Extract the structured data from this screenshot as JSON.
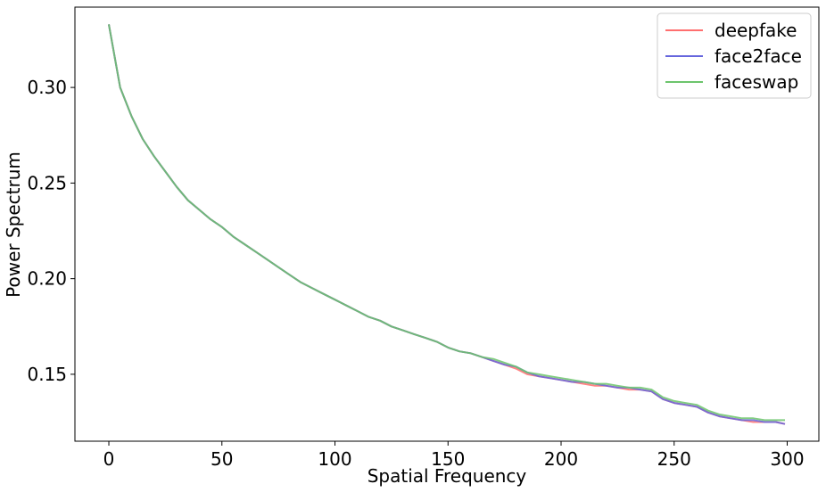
{
  "chart_data": {
    "type": "line",
    "title": "",
    "xlabel": "Spatial Frequency",
    "ylabel": "Power Spectrum",
    "xlim": [
      -15,
      314
    ],
    "ylim": [
      0.115,
      0.342
    ],
    "xticks": [
      0,
      50,
      100,
      150,
      200,
      250,
      300
    ],
    "xtick_labels": [
      "0",
      "50",
      "100",
      "150",
      "200",
      "250",
      "300"
    ],
    "yticks": [
      0.15,
      0.2,
      0.25,
      0.3
    ],
    "ytick_labels": [
      "0.15",
      "0.20",
      "0.25",
      "0.30"
    ],
    "grid": false,
    "legend_position": "top-right",
    "x": [
      0,
      5,
      10,
      15,
      20,
      25,
      30,
      35,
      40,
      45,
      50,
      55,
      60,
      65,
      70,
      75,
      80,
      85,
      90,
      95,
      100,
      105,
      110,
      115,
      120,
      125,
      130,
      135,
      140,
      145,
      150,
      155,
      160,
      165,
      170,
      175,
      180,
      185,
      190,
      195,
      200,
      205,
      210,
      215,
      220,
      225,
      230,
      235,
      240,
      245,
      250,
      255,
      260,
      265,
      270,
      275,
      280,
      285,
      290,
      295,
      299
    ],
    "series": [
      {
        "name": "deepfake",
        "color": "#ff6f6f",
        "values": [
          0.333,
          0.3,
          0.285,
          0.273,
          0.264,
          0.256,
          0.248,
          0.241,
          0.236,
          0.231,
          0.227,
          0.222,
          0.218,
          0.214,
          0.21,
          0.206,
          0.202,
          0.198,
          0.195,
          0.192,
          0.189,
          0.186,
          0.183,
          0.18,
          0.178,
          0.175,
          0.173,
          0.171,
          0.169,
          0.167,
          0.164,
          0.162,
          0.161,
          0.159,
          0.157,
          0.155,
          0.153,
          0.15,
          0.149,
          0.148,
          0.147,
          0.146,
          0.145,
          0.144,
          0.144,
          0.143,
          0.142,
          0.142,
          0.141,
          0.137,
          0.135,
          0.134,
          0.133,
          0.13,
          0.128,
          0.127,
          0.126,
          0.125,
          0.125,
          0.125,
          0.124
        ]
      },
      {
        "name": "face2face",
        "color": "#6666dd",
        "values": [
          0.333,
          0.3,
          0.285,
          0.273,
          0.264,
          0.256,
          0.248,
          0.241,
          0.236,
          0.231,
          0.227,
          0.222,
          0.218,
          0.214,
          0.21,
          0.206,
          0.202,
          0.198,
          0.195,
          0.192,
          0.189,
          0.186,
          0.183,
          0.18,
          0.178,
          0.175,
          0.173,
          0.171,
          0.169,
          0.167,
          0.164,
          0.162,
          0.161,
          0.159,
          0.157,
          0.155,
          0.154,
          0.151,
          0.149,
          0.148,
          0.147,
          0.146,
          0.146,
          0.145,
          0.144,
          0.143,
          0.143,
          0.142,
          0.141,
          0.137,
          0.135,
          0.134,
          0.133,
          0.13,
          0.128,
          0.127,
          0.126,
          0.126,
          0.125,
          0.125,
          0.124
        ]
      },
      {
        "name": "faceswap",
        "color": "#6cc46c",
        "values": [
          0.333,
          0.3,
          0.285,
          0.273,
          0.264,
          0.256,
          0.248,
          0.241,
          0.236,
          0.231,
          0.227,
          0.222,
          0.218,
          0.214,
          0.21,
          0.206,
          0.202,
          0.198,
          0.195,
          0.192,
          0.189,
          0.186,
          0.183,
          0.18,
          0.178,
          0.175,
          0.173,
          0.171,
          0.169,
          0.167,
          0.164,
          0.162,
          0.161,
          0.159,
          0.158,
          0.156,
          0.154,
          0.151,
          0.15,
          0.149,
          0.148,
          0.147,
          0.146,
          0.145,
          0.145,
          0.144,
          0.143,
          0.143,
          0.142,
          0.138,
          0.136,
          0.135,
          0.134,
          0.131,
          0.129,
          0.128,
          0.127,
          0.127,
          0.126,
          0.126,
          0.126
        ]
      }
    ]
  }
}
